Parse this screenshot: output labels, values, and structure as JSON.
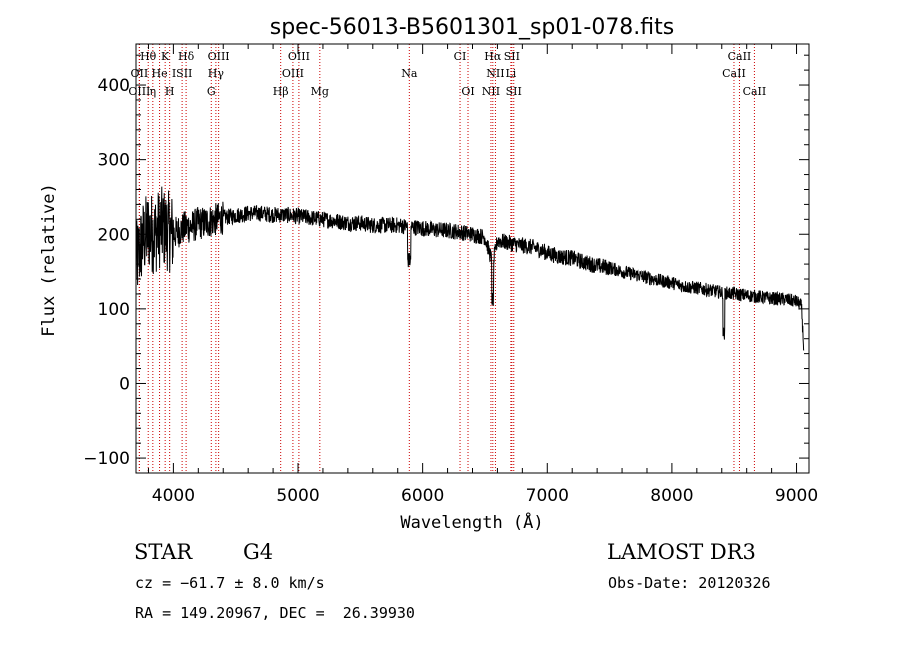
{
  "chart_data": {
    "type": "line",
    "title": "spec-56013-B5601301_sp01-078.fits",
    "xlabel": "Wavelength (Å)",
    "ylabel": "Flux (relative)",
    "xlim": [
      3700,
      9100
    ],
    "ylim": [
      -120,
      455
    ],
    "xticks": [
      4000,
      5000,
      6000,
      7000,
      8000,
      9000
    ],
    "yticks": [
      -100,
      0,
      100,
      200,
      300,
      400
    ],
    "series": [
      {
        "name": "spectrum",
        "x": [
          3700,
          3750,
          3800,
          3850,
          3900,
          3950,
          4000,
          4050,
          4100,
          4150,
          4200,
          4250,
          4300,
          4350,
          4400,
          4500,
          4600,
          4700,
          4800,
          4900,
          5000,
          5100,
          5200,
          5300,
          5400,
          5500,
          5600,
          5700,
          5800,
          5900,
          6000,
          6100,
          6200,
          6300,
          6400,
          6500,
          6563,
          6600,
          6700,
          6800,
          6900,
          7000,
          7100,
          7200,
          7300,
          7400,
          7500,
          7600,
          7700,
          7800,
          7900,
          8000,
          8100,
          8200,
          8300,
          8400,
          8500,
          8600,
          8700,
          8800,
          8900,
          9000,
          9060
        ],
        "values": [
          160,
          190,
          205,
          200,
          210,
          205,
          200,
          205,
          210,
          210,
          215,
          215,
          218,
          220,
          222,
          225,
          228,
          228,
          226,
          226,
          224,
          222,
          220,
          218,
          215,
          215,
          212,
          212,
          212,
          210,
          208,
          206,
          205,
          203,
          200,
          196,
          160,
          192,
          188,
          185,
          182,
          175,
          170,
          168,
          162,
          158,
          155,
          150,
          146,
          142,
          138,
          135,
          130,
          128,
          125,
          122,
          120,
          118,
          116,
          114,
          113,
          110,
          100
        ]
      }
    ],
    "lines": [
      {
        "name": "Hθ",
        "x": 3798,
        "row": 1
      },
      {
        "name": "K",
        "x": 3934,
        "row": 1
      },
      {
        "name": "Hδ",
        "x": 4102,
        "row": 1
      },
      {
        "name": "OIII",
        "x": 4363,
        "row": 1
      },
      {
        "name": "OIII",
        "x": 5007,
        "row": 1
      },
      {
        "name": "CI",
        "x": 6300,
        "row": 1
      },
      {
        "name": "Hα",
        "x": 6563,
        "row": 1
      },
      {
        "name": "SII",
        "x": 6716,
        "row": 1
      },
      {
        "name": "CaII",
        "x": 8542,
        "row": 1
      },
      {
        "name": "OII",
        "x": 3727,
        "row": 2
      },
      {
        "name": "He",
        "x": 3889,
        "row": 2
      },
      {
        "name": "ISII",
        "x": 4070,
        "row": 2
      },
      {
        "name": "Hγ",
        "x": 4341,
        "row": 2
      },
      {
        "name": "OIII",
        "x": 4959,
        "row": 2
      },
      {
        "name": "Na",
        "x": 5893,
        "row": 2
      },
      {
        "name": "NII",
        "x": 6584,
        "row": 2
      },
      {
        "name": "Li",
        "x": 6708,
        "row": 2
      },
      {
        "name": "CaII",
        "x": 8498,
        "row": 2
      },
      {
        "name": "OIII",
        "x": 3727,
        "row": 3
      },
      {
        "name": "η",
        "x": 3835,
        "row": 3
      },
      {
        "name": "H",
        "x": 3970,
        "row": 3
      },
      {
        "name": "G",
        "x": 4304,
        "row": 3
      },
      {
        "name": "Hβ",
        "x": 4861,
        "row": 3
      },
      {
        "name": "Mg",
        "x": 5175,
        "row": 3
      },
      {
        "name": "OI",
        "x": 6364,
        "row": 3
      },
      {
        "name": "NII",
        "x": 6548,
        "row": 3
      },
      {
        "name": "SII",
        "x": 6731,
        "row": 3
      },
      {
        "name": "CaII",
        "x": 8662,
        "row": 3
      }
    ]
  },
  "info": {
    "object_class": "STAR",
    "subclass": "G4",
    "survey": "LAMOST DR3",
    "cz": "cz = −61.7 ± 8.0 km/s",
    "obs_date": "Obs-Date: 20120326",
    "coords": "RA = 149.20967, DEC =  26.39930"
  },
  "colors": {
    "line_markers": "#cc0000",
    "spectrum": "#000000"
  }
}
